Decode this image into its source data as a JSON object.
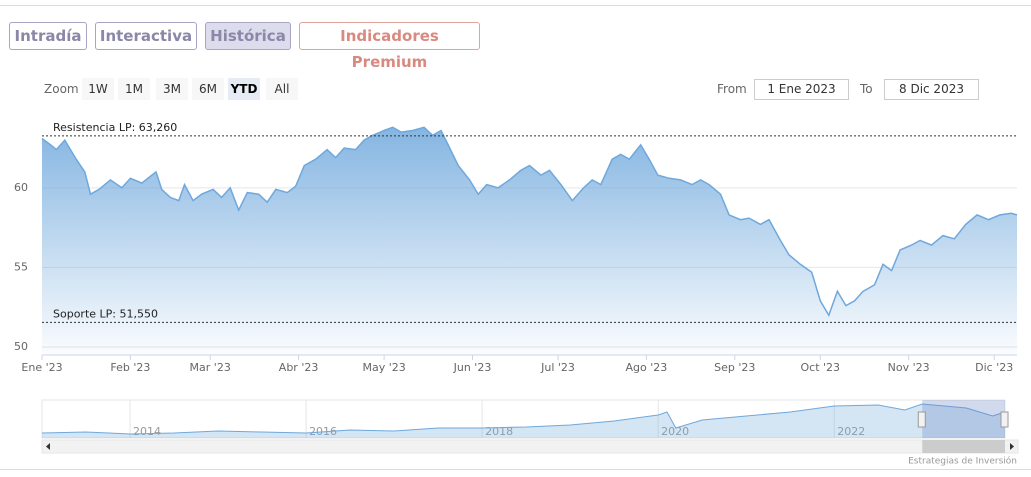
{
  "tabs": [
    "Intradía",
    "Interactiva",
    "Histórica",
    "Indicadores Premium"
  ],
  "active_tab": 2,
  "zoom": {
    "label": "Zoom",
    "buttons": [
      "1W",
      "1M",
      "3M",
      "6M",
      "YTD",
      "All"
    ],
    "active": 4
  },
  "range": {
    "from_label": "From",
    "from": "1 Ene 2023",
    "to_label": "To",
    "to": "8 Dic 2023"
  },
  "credits": "Estrategias de Inversión",
  "chart_data": [
    {
      "type": "area",
      "color": "#6fa8dc",
      "grid": true,
      "xlim": [
        0,
        342
      ],
      "xticks": [
        {
          "value": 0,
          "label": "Ene '23"
        },
        {
          "value": 31,
          "label": "Feb '23"
        },
        {
          "value": 59,
          "label": "Mar '23"
        },
        {
          "value": 90,
          "label": "Abr '23"
        },
        {
          "value": 120,
          "label": "May '23"
        },
        {
          "value": 151,
          "label": "Jun '23"
        },
        {
          "value": 181,
          "label": "Jul '23"
        },
        {
          "value": 212,
          "label": "Ago '23"
        },
        {
          "value": 243,
          "label": "Sep '23"
        },
        {
          "value": 273,
          "label": "Oct '23"
        },
        {
          "value": 304,
          "label": "Nov '23"
        },
        {
          "value": 334,
          "label": "Dic '23"
        }
      ],
      "ylim": [
        49.5,
        64.7
      ],
      "yticks": [
        50,
        55,
        60
      ],
      "annotations": [
        {
          "label": "Resistencia LP: 63,260",
          "value": 63.26
        },
        {
          "label": "Soporte LP: 51,550",
          "value": 51.55
        }
      ],
      "x": [
        0,
        3,
        5,
        8,
        12,
        15,
        17,
        20,
        24,
        28,
        31,
        35,
        40,
        42,
        45,
        48,
        50,
        53,
        56,
        60,
        63,
        66,
        69,
        72,
        76,
        79,
        82,
        86,
        89,
        92,
        96,
        100,
        103,
        106,
        110,
        113,
        116,
        120,
        123,
        126,
        130,
        134,
        137,
        140,
        143,
        146,
        150,
        153,
        156,
        160,
        164,
        168,
        171,
        175,
        178,
        182,
        186,
        190,
        193,
        196,
        200,
        203,
        206,
        210,
        213,
        216,
        220,
        224,
        228,
        231,
        234,
        238,
        241,
        245,
        248,
        252,
        255,
        259,
        262,
        266,
        270,
        273,
        276,
        279,
        282,
        285,
        288,
        292,
        295,
        298,
        301,
        305,
        308,
        312,
        316,
        320,
        324,
        328,
        332,
        336,
        340,
        342
      ],
      "values": [
        63.1,
        62.7,
        62.4,
        63.0,
        61.8,
        61.0,
        59.6,
        59.9,
        60.5,
        60.0,
        60.6,
        60.3,
        61.0,
        59.9,
        59.4,
        59.2,
        60.2,
        59.2,
        59.6,
        59.9,
        59.4,
        60.0,
        58.6,
        59.7,
        59.6,
        59.1,
        59.9,
        59.7,
        60.1,
        61.4,
        61.8,
        62.4,
        61.9,
        62.5,
        62.4,
        63.0,
        63.3,
        63.6,
        63.8,
        63.5,
        63.6,
        63.8,
        63.3,
        63.6,
        62.5,
        61.4,
        60.5,
        59.6,
        60.2,
        60.0,
        60.5,
        61.1,
        61.4,
        60.8,
        61.1,
        60.2,
        59.2,
        60.0,
        60.5,
        60.2,
        61.8,
        62.1,
        61.8,
        62.7,
        61.8,
        60.8,
        60.6,
        60.5,
        60.2,
        60.5,
        60.2,
        59.6,
        58.3,
        58.0,
        58.1,
        57.7,
        58.0,
        56.7,
        55.8,
        55.2,
        54.7,
        52.9,
        52.0,
        53.5,
        52.6,
        52.9,
        53.5,
        53.9,
        55.2,
        54.8,
        56.1,
        56.4,
        56.7,
        56.4,
        57.0,
        56.8,
        57.7,
        58.3,
        58.0,
        58.3,
        58.4,
        58.3
      ]
    },
    {
      "type": "navigator",
      "color": "#6fa8dc",
      "xlim": [
        2013,
        2023.94
      ],
      "xticks": [
        2014,
        2016,
        2018,
        2020,
        2022
      ],
      "ylim": [
        20,
        66
      ],
      "selection": [
        2023,
        2023.94
      ],
      "x": [
        2013,
        2013.5,
        2014,
        2014.5,
        2015,
        2015.5,
        2016,
        2016.5,
        2017,
        2017.5,
        2018,
        2018.5,
        2019,
        2019.5,
        2020,
        2020.1,
        2020.2,
        2020.5,
        2021,
        2021.5,
        2022,
        2022.5,
        2022.8,
        2023,
        2023.5,
        2023.8,
        2023.94
      ],
      "values": [
        26.1,
        27.3,
        24.8,
        26.1,
        28.5,
        27.3,
        26.1,
        29.7,
        28.5,
        32.1,
        32.1,
        33.3,
        35.7,
        40.6,
        47.8,
        51.5,
        32.1,
        41.8,
        46.6,
        51.5,
        58.7,
        59.9,
        53.9,
        61.1,
        56.3,
        46.6,
        51.5
      ]
    }
  ]
}
